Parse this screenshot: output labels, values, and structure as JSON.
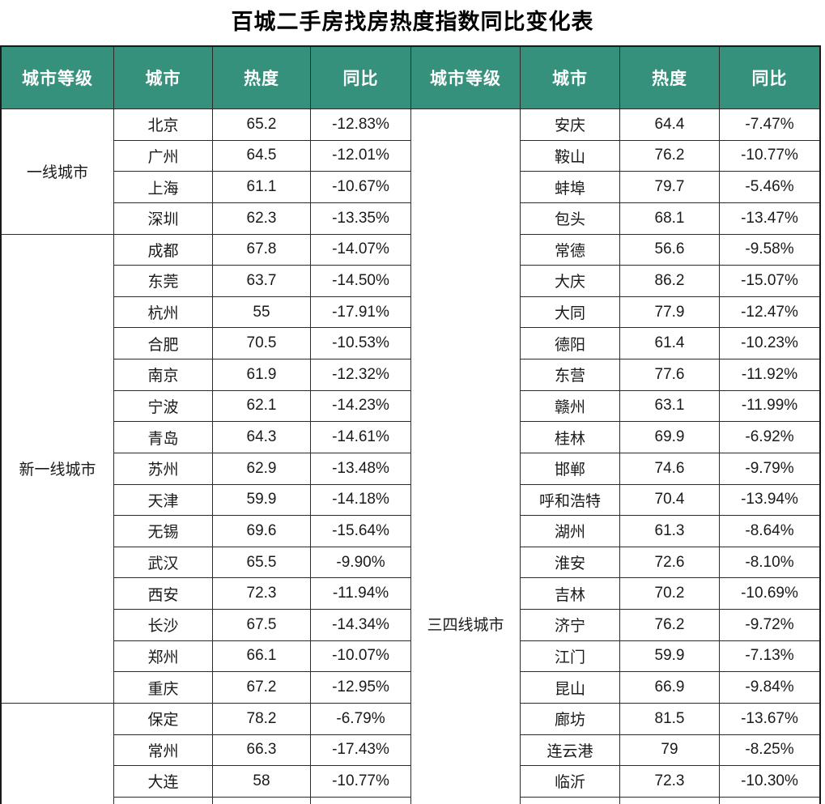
{
  "colors": {
    "header_bg": "#35917C",
    "header_text": "#FFFFFF",
    "border_outer": "#1A1A1A",
    "border_inner": "#2B2B2B",
    "cell_text": "#1A1A1A",
    "title_text": "#000000"
  },
  "chart_data": {
    "type": "table",
    "title": "百城二手房找房热度指数同比变化表",
    "columns": [
      "城市等级",
      "城市",
      "热度",
      "同比"
    ],
    "layout": {
      "two_panel": true,
      "rows_per_panel": 22,
      "bottom_row_cut_off": true
    },
    "panels": [
      {
        "groups": [
          {
            "tier": "一线城市",
            "rows": [
              {
                "city": "北京",
                "heat": "65.2",
                "yoy": "-12.83%"
              },
              {
                "city": "广州",
                "heat": "64.5",
                "yoy": "-12.01%"
              },
              {
                "city": "上海",
                "heat": "61.1",
                "yoy": "-10.67%"
              },
              {
                "city": "深圳",
                "heat": "62.3",
                "yoy": "-13.35%"
              }
            ]
          },
          {
            "tier": "新一线城市",
            "rows": [
              {
                "city": "成都",
                "heat": "67.8",
                "yoy": "-14.07%"
              },
              {
                "city": "东莞",
                "heat": "63.7",
                "yoy": "-14.50%"
              },
              {
                "city": "杭州",
                "heat": "55",
                "yoy": "-17.91%"
              },
              {
                "city": "合肥",
                "heat": "70.5",
                "yoy": "-10.53%"
              },
              {
                "city": "南京",
                "heat": "61.9",
                "yoy": "-12.32%"
              },
              {
                "city": "宁波",
                "heat": "62.1",
                "yoy": "-14.23%"
              },
              {
                "city": "青岛",
                "heat": "64.3",
                "yoy": "-14.61%"
              },
              {
                "city": "苏州",
                "heat": "62.9",
                "yoy": "-13.48%"
              },
              {
                "city": "天津",
                "heat": "59.9",
                "yoy": "-14.18%"
              },
              {
                "city": "无锡",
                "heat": "69.6",
                "yoy": "-15.64%"
              },
              {
                "city": "武汉",
                "heat": "65.5",
                "yoy": "-9.90%"
              },
              {
                "city": "西安",
                "heat": "72.3",
                "yoy": "-11.94%"
              },
              {
                "city": "长沙",
                "heat": "67.5",
                "yoy": "-14.34%"
              },
              {
                "city": "郑州",
                "heat": "66.1",
                "yoy": "-10.07%"
              },
              {
                "city": "重庆",
                "heat": "67.2",
                "yoy": "-12.95%"
              }
            ]
          },
          {
            "tier": "",
            "rows": [
              {
                "city": "保定",
                "heat": "78.2",
                "yoy": "-6.79%"
              },
              {
                "city": "常州",
                "heat": "66.3",
                "yoy": "-17.43%"
              },
              {
                "city": "大连",
                "heat": "58",
                "yoy": "-10.77%"
              }
            ]
          }
        ]
      },
      {
        "groups": [
          {
            "tier": "三四线城市",
            "label_top": 622,
            "rows": [
              {
                "city": "安庆",
                "heat": "64.4",
                "yoy": "-7.47%"
              },
              {
                "city": "鞍山",
                "heat": "76.2",
                "yoy": "-10.77%"
              },
              {
                "city": "蚌埠",
                "heat": "79.7",
                "yoy": "-5.46%"
              },
              {
                "city": "包头",
                "heat": "68.1",
                "yoy": "-13.47%"
              },
              {
                "city": "常德",
                "heat": "56.6",
                "yoy": "-9.58%"
              },
              {
                "city": "大庆",
                "heat": "86.2",
                "yoy": "-15.07%"
              },
              {
                "city": "大同",
                "heat": "77.9",
                "yoy": "-12.47%"
              },
              {
                "city": "德阳",
                "heat": "61.4",
                "yoy": "-10.23%"
              },
              {
                "city": "东营",
                "heat": "77.6",
                "yoy": "-11.92%"
              },
              {
                "city": "赣州",
                "heat": "63.1",
                "yoy": "-11.99%"
              },
              {
                "city": "桂林",
                "heat": "69.9",
                "yoy": "-6.92%"
              },
              {
                "city": "邯郸",
                "heat": "74.6",
                "yoy": "-9.79%"
              },
              {
                "city": "呼和浩特",
                "heat": "70.4",
                "yoy": "-13.94%"
              },
              {
                "city": "湖州",
                "heat": "61.3",
                "yoy": "-8.64%"
              },
              {
                "city": "淮安",
                "heat": "72.6",
                "yoy": "-8.10%"
              },
              {
                "city": "吉林",
                "heat": "70.2",
                "yoy": "-10.69%"
              },
              {
                "city": "济宁",
                "heat": "76.2",
                "yoy": "-9.72%"
              },
              {
                "city": "江门",
                "heat": "59.9",
                "yoy": "-7.13%"
              },
              {
                "city": "昆山",
                "heat": "66.9",
                "yoy": "-9.84%"
              },
              {
                "city": "廊坊",
                "heat": "81.5",
                "yoy": "-13.67%"
              },
              {
                "city": "连云港",
                "heat": "79",
                "yoy": "-8.25%"
              },
              {
                "city": "临沂",
                "heat": "72.3",
                "yoy": "-10.30%"
              }
            ]
          }
        ]
      }
    ]
  }
}
